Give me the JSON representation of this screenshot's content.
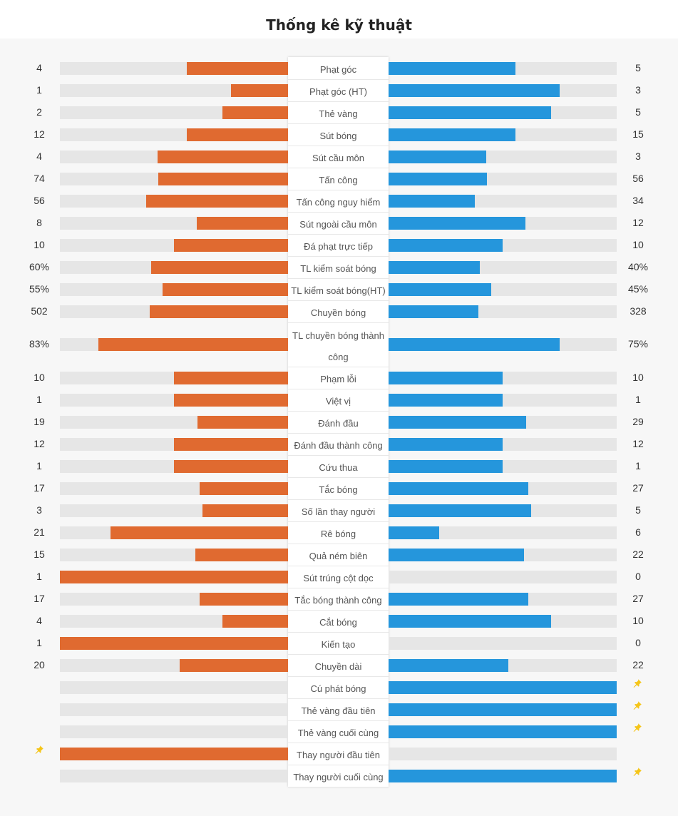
{
  "title": "Thống kê kỹ thuật",
  "colors": {
    "home": "#e06a30",
    "away": "#2596dc",
    "track": "#e6e6e6",
    "pin": "#f5c518"
  },
  "stats": [
    {
      "label": "Phạt góc",
      "home": "4",
      "away": "5",
      "home_fill": 0.444,
      "away_fill": 0.556
    },
    {
      "label": "Phạt góc (HT)",
      "home": "1",
      "away": "3",
      "home_fill": 0.25,
      "away_fill": 0.75
    },
    {
      "label": "Thẻ vàng",
      "home": "2",
      "away": "5",
      "home_fill": 0.286,
      "away_fill": 0.714
    },
    {
      "label": "Sút bóng",
      "home": "12",
      "away": "15",
      "home_fill": 0.444,
      "away_fill": 0.556
    },
    {
      "label": "Sút cầu môn",
      "home": "4",
      "away": "3",
      "home_fill": 0.571,
      "away_fill": 0.429
    },
    {
      "label": "Tấn công",
      "home": "74",
      "away": "56",
      "home_fill": 0.569,
      "away_fill": 0.431
    },
    {
      "label": "Tấn công nguy hiểm",
      "home": "56",
      "away": "34",
      "home_fill": 0.622,
      "away_fill": 0.378
    },
    {
      "label": "Sút ngoài cầu môn",
      "home": "8",
      "away": "12",
      "home_fill": 0.4,
      "away_fill": 0.6
    },
    {
      "label": "Đá phạt trực tiếp",
      "home": "10",
      "away": "10",
      "home_fill": 0.5,
      "away_fill": 0.5
    },
    {
      "label": "TL kiểm soát bóng",
      "home": "60%",
      "away": "40%",
      "home_fill": 0.6,
      "away_fill": 0.4
    },
    {
      "label": "TL kiểm soát bóng(HT)",
      "home": "55%",
      "away": "45%",
      "home_fill": 0.55,
      "away_fill": 0.45
    },
    {
      "label": "Chuyền bóng",
      "home": "502",
      "away": "328",
      "home_fill": 0.605,
      "away_fill": 0.395
    },
    {
      "label": "TL chuyền bóng thành công",
      "label_lines": [
        "TL chuyền bóng thành",
        "công"
      ],
      "home": "83%",
      "away": "75%",
      "home_fill": 0.83,
      "away_fill": 0.75,
      "tall": true
    },
    {
      "label": "Phạm lỗi",
      "home": "10",
      "away": "10",
      "home_fill": 0.5,
      "away_fill": 0.5
    },
    {
      "label": "Việt vị",
      "home": "1",
      "away": "1",
      "home_fill": 0.5,
      "away_fill": 0.5
    },
    {
      "label": "Đánh đầu",
      "home": "19",
      "away": "29",
      "home_fill": 0.396,
      "away_fill": 0.604
    },
    {
      "label": "Đánh đầu thành công",
      "home": "12",
      "away": "12",
      "home_fill": 0.5,
      "away_fill": 0.5
    },
    {
      "label": "Cứu thua",
      "home": "1",
      "away": "1",
      "home_fill": 0.5,
      "away_fill": 0.5
    },
    {
      "label": "Tắc bóng",
      "home": "17",
      "away": "27",
      "home_fill": 0.386,
      "away_fill": 0.614
    },
    {
      "label": "Số lần thay người",
      "home": "3",
      "away": "5",
      "home_fill": 0.375,
      "away_fill": 0.625
    },
    {
      "label": "Rê bóng",
      "home": "21",
      "away": "6",
      "home_fill": 0.778,
      "away_fill": 0.222
    },
    {
      "label": "Quả ném biên",
      "home": "15",
      "away": "22",
      "home_fill": 0.405,
      "away_fill": 0.595
    },
    {
      "label": "Sút trúng cột dọc",
      "home": "1",
      "away": "0",
      "home_fill": 1.0,
      "away_fill": 0.0
    },
    {
      "label": "Tắc bóng thành công",
      "home": "17",
      "away": "27",
      "home_fill": 0.386,
      "away_fill": 0.614
    },
    {
      "label": "Cắt bóng",
      "home": "4",
      "away": "10",
      "home_fill": 0.286,
      "away_fill": 0.714
    },
    {
      "label": "Kiến tạo",
      "home": "1",
      "away": "0",
      "home_fill": 1.0,
      "away_fill": 0.0
    },
    {
      "label": "Chuyền dài",
      "home": "20",
      "away": "22",
      "home_fill": 0.476,
      "away_fill": 0.524
    },
    {
      "label": "Cú phát bóng",
      "home": "",
      "away": "",
      "home_fill": 0.0,
      "away_fill": 1.0,
      "pin": "away",
      "pin_icon": "pushpin-icon"
    },
    {
      "label": "Thẻ vàng đầu tiên",
      "home": "",
      "away": "",
      "home_fill": 0.0,
      "away_fill": 1.0,
      "pin": "away",
      "pin_icon": "pushpin-icon"
    },
    {
      "label": "Thẻ vàng cuối cùng",
      "home": "",
      "away": "",
      "home_fill": 0.0,
      "away_fill": 1.0,
      "pin": "away",
      "pin_icon": "pushpin-icon"
    },
    {
      "label": "Thay người đầu tiên",
      "home": "",
      "away": "",
      "home_fill": 1.0,
      "away_fill": 0.0,
      "pin": "home",
      "pin_icon": "pushpin-icon"
    },
    {
      "label": "Thay người cuối cùng",
      "home": "",
      "away": "",
      "home_fill": 0.0,
      "away_fill": 1.0,
      "pin": "away",
      "pin_icon": "pushpin-icon"
    }
  ]
}
